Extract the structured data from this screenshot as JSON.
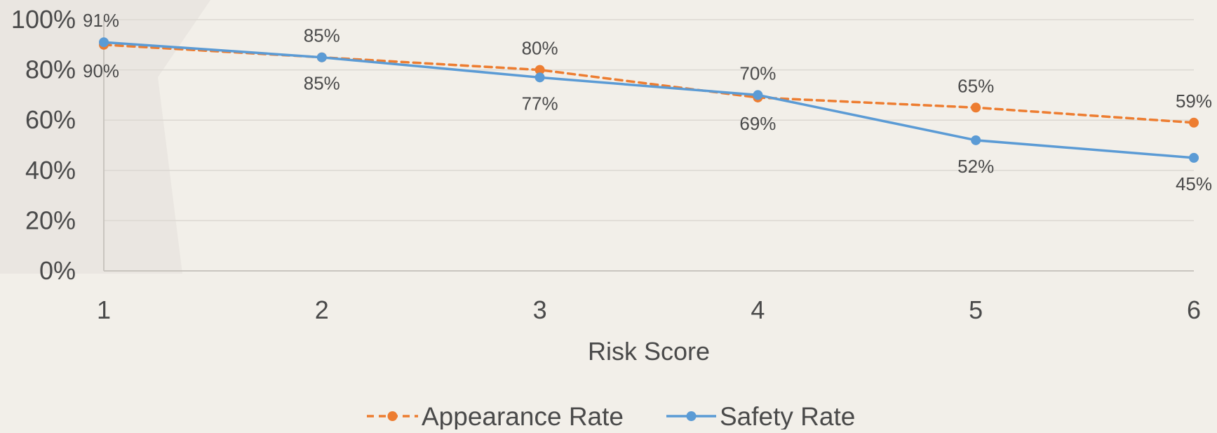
{
  "chart_data": {
    "type": "line",
    "title": "",
    "x": [
      1,
      2,
      3,
      4,
      5,
      6
    ],
    "xlabel": "Risk Score",
    "ylabel": "",
    "ylim": [
      0,
      1
    ],
    "y_ticks": [
      0,
      0.2,
      0.4,
      0.6,
      0.8,
      1.0
    ],
    "y_tick_labels": [
      "0%",
      "20%",
      "40%",
      "60%",
      "80%",
      "100%"
    ],
    "grid": true,
    "legend": "bottom",
    "series": [
      {
        "name": "Appearance Rate",
        "values": [
          0.9,
          0.85,
          0.8,
          0.69,
          0.65,
          0.59
        ],
        "labels": [
          "90%",
          "85%",
          "80%",
          "69%",
          "65%",
          "59%"
        ],
        "color": "#ed7d31",
        "dash": true
      },
      {
        "name": "Safety Rate",
        "values": [
          0.91,
          0.85,
          0.77,
          0.7,
          0.52,
          0.45
        ],
        "labels": [
          "91%",
          "85%",
          "77%",
          "70%",
          "52%",
          "45%"
        ],
        "color": "#5b9bd5",
        "dash": false
      }
    ]
  },
  "colors": {
    "background": "#f2efe9",
    "grid": "#dcd8d2",
    "axis": "#c9c5bf",
    "text": "#4a4a4a"
  }
}
